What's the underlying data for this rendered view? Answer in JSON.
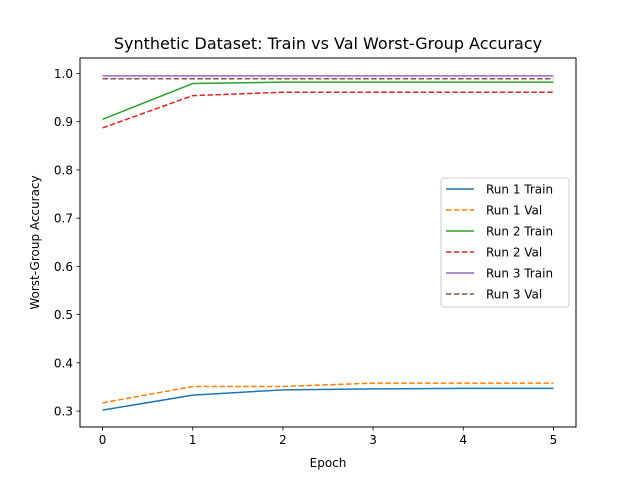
{
  "chart_data": {
    "type": "line",
    "title": "Synthetic Dataset: Train vs Val Worst-Group Accuracy",
    "xlabel": "Epoch",
    "ylabel": "Worst-Group Accuracy",
    "x": [
      0,
      1,
      2,
      3,
      4,
      5
    ],
    "xlim": [
      -0.25,
      5.25
    ],
    "ylim": [
      0.267,
      1.032
    ],
    "xticks": [
      "0",
      "1",
      "2",
      "3",
      "4",
      "5"
    ],
    "yticks": [
      "0.3",
      "0.4",
      "0.5",
      "0.6",
      "0.7",
      "0.8",
      "0.9",
      "1.0"
    ],
    "grid": false,
    "legend_position": "center-right",
    "series": [
      {
        "name": "Run 1 Train",
        "values": [
          0.302,
          0.333,
          0.344,
          0.346,
          0.347,
          0.347
        ],
        "color": "#1f77b4",
        "style": "solid"
      },
      {
        "name": "Run 1 Val",
        "values": [
          0.317,
          0.351,
          0.351,
          0.358,
          0.358,
          0.358
        ],
        "color": "#ff7f0e",
        "style": "dashed"
      },
      {
        "name": "Run 2 Train",
        "values": [
          0.905,
          0.979,
          0.982,
          0.982,
          0.982,
          0.982
        ],
        "color": "#2ca02c",
        "style": "solid"
      },
      {
        "name": "Run 2 Val",
        "values": [
          0.887,
          0.954,
          0.961,
          0.961,
          0.961,
          0.961
        ],
        "color": "#d62728",
        "style": "dashed"
      },
      {
        "name": "Run 3 Train",
        "values": [
          0.995,
          0.995,
          0.995,
          0.995,
          0.995,
          0.995
        ],
        "color": "#9467bd",
        "style": "solid"
      },
      {
        "name": "Run 3 Val",
        "values": [
          0.989,
          0.989,
          0.989,
          0.989,
          0.989,
          0.989
        ],
        "color": "#8c564b",
        "style": "dashed"
      }
    ]
  }
}
